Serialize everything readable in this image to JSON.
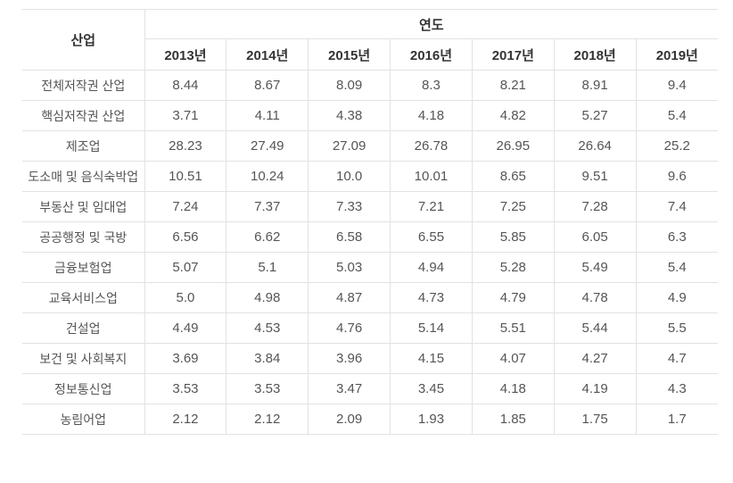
{
  "table": {
    "industry_header": "산업",
    "year_group_header": "연도",
    "year_columns": [
      "2013년",
      "2014년",
      "2015년",
      "2016년",
      "2017년",
      "2018년",
      "2019년"
    ],
    "rows": [
      {
        "label": "전체저작권 산업",
        "values": [
          "8.44",
          "8.67",
          "8.09",
          "8.3",
          "8.21",
          "8.91",
          "9.4"
        ]
      },
      {
        "label": "핵심저작권 산업",
        "values": [
          "3.71",
          "4.11",
          "4.38",
          "4.18",
          "4.82",
          "5.27",
          "5.4"
        ]
      },
      {
        "label": "제조업",
        "values": [
          "28.23",
          "27.49",
          "27.09",
          "26.78",
          "26.95",
          "26.64",
          "25.2"
        ]
      },
      {
        "label": "도소매 및 음식숙박업",
        "values": [
          "10.51",
          "10.24",
          "10.0",
          "10.01",
          "8.65",
          "9.51",
          "9.6"
        ]
      },
      {
        "label": "부동산 및 임대업",
        "values": [
          "7.24",
          "7.37",
          "7.33",
          "7.21",
          "7.25",
          "7.28",
          "7.4"
        ]
      },
      {
        "label": "공공행정 및 국방",
        "values": [
          "6.56",
          "6.62",
          "6.58",
          "6.55",
          "5.85",
          "6.05",
          "6.3"
        ]
      },
      {
        "label": "금융보험업",
        "values": [
          "5.07",
          "5.1",
          "5.03",
          "4.94",
          "5.28",
          "5.49",
          "5.4"
        ]
      },
      {
        "label": "교육서비스업",
        "values": [
          "5.0",
          "4.98",
          "4.87",
          "4.73",
          "4.79",
          "4.78",
          "4.9"
        ]
      },
      {
        "label": "건설업",
        "values": [
          "4.49",
          "4.53",
          "4.76",
          "5.14",
          "5.51",
          "5.44",
          "5.5"
        ]
      },
      {
        "label": "보건 및 사회복지",
        "values": [
          "3.69",
          "3.84",
          "3.96",
          "4.15",
          "4.07",
          "4.27",
          "4.7"
        ]
      },
      {
        "label": "정보통신업",
        "values": [
          "3.53",
          "3.53",
          "3.47",
          "3.45",
          "4.18",
          "4.19",
          "4.3"
        ]
      },
      {
        "label": "농림어업",
        "values": [
          "2.12",
          "2.12",
          "2.09",
          "1.93",
          "1.85",
          "1.75",
          "1.7"
        ]
      }
    ]
  },
  "colors": {
    "border": "#e2e2e2",
    "header_text": "#333333",
    "cell_text": "#555555",
    "background": "#ffffff"
  },
  "chart_data": {
    "type": "table",
    "title": "",
    "categories": [
      "2013년",
      "2014년",
      "2015년",
      "2016년",
      "2017년",
      "2018년",
      "2019년"
    ],
    "row_header_label": "산업",
    "column_group_label": "연도",
    "series": [
      {
        "name": "전체저작권 산업",
        "values": [
          8.44,
          8.67,
          8.09,
          8.3,
          8.21,
          8.91,
          9.4
        ]
      },
      {
        "name": "핵심저작권 산업",
        "values": [
          3.71,
          4.11,
          4.38,
          4.18,
          4.82,
          5.27,
          5.4
        ]
      },
      {
        "name": "제조업",
        "values": [
          28.23,
          27.49,
          27.09,
          26.78,
          26.95,
          26.64,
          25.2
        ]
      },
      {
        "name": "도소매 및 음식숙박업",
        "values": [
          10.51,
          10.24,
          10.0,
          10.01,
          8.65,
          9.51,
          9.6
        ]
      },
      {
        "name": "부동산 및 임대업",
        "values": [
          7.24,
          7.37,
          7.33,
          7.21,
          7.25,
          7.28,
          7.4
        ]
      },
      {
        "name": "공공행정 및 국방",
        "values": [
          6.56,
          6.62,
          6.58,
          6.55,
          5.85,
          6.05,
          6.3
        ]
      },
      {
        "name": "금융보험업",
        "values": [
          5.07,
          5.1,
          5.03,
          4.94,
          5.28,
          5.49,
          5.4
        ]
      },
      {
        "name": "교육서비스업",
        "values": [
          5.0,
          4.98,
          4.87,
          4.73,
          4.79,
          4.78,
          4.9
        ]
      },
      {
        "name": "건설업",
        "values": [
          4.49,
          4.53,
          4.76,
          5.14,
          5.51,
          5.44,
          5.5
        ]
      },
      {
        "name": "보건 및 사회복지",
        "values": [
          3.69,
          3.84,
          3.96,
          4.15,
          4.07,
          4.27,
          4.7
        ]
      },
      {
        "name": "정보통신업",
        "values": [
          3.53,
          3.53,
          3.47,
          3.45,
          4.18,
          4.19,
          4.3
        ]
      },
      {
        "name": "농림어업",
        "values": [
          2.12,
          2.12,
          2.09,
          1.93,
          1.85,
          1.75,
          1.7
        ]
      }
    ]
  }
}
